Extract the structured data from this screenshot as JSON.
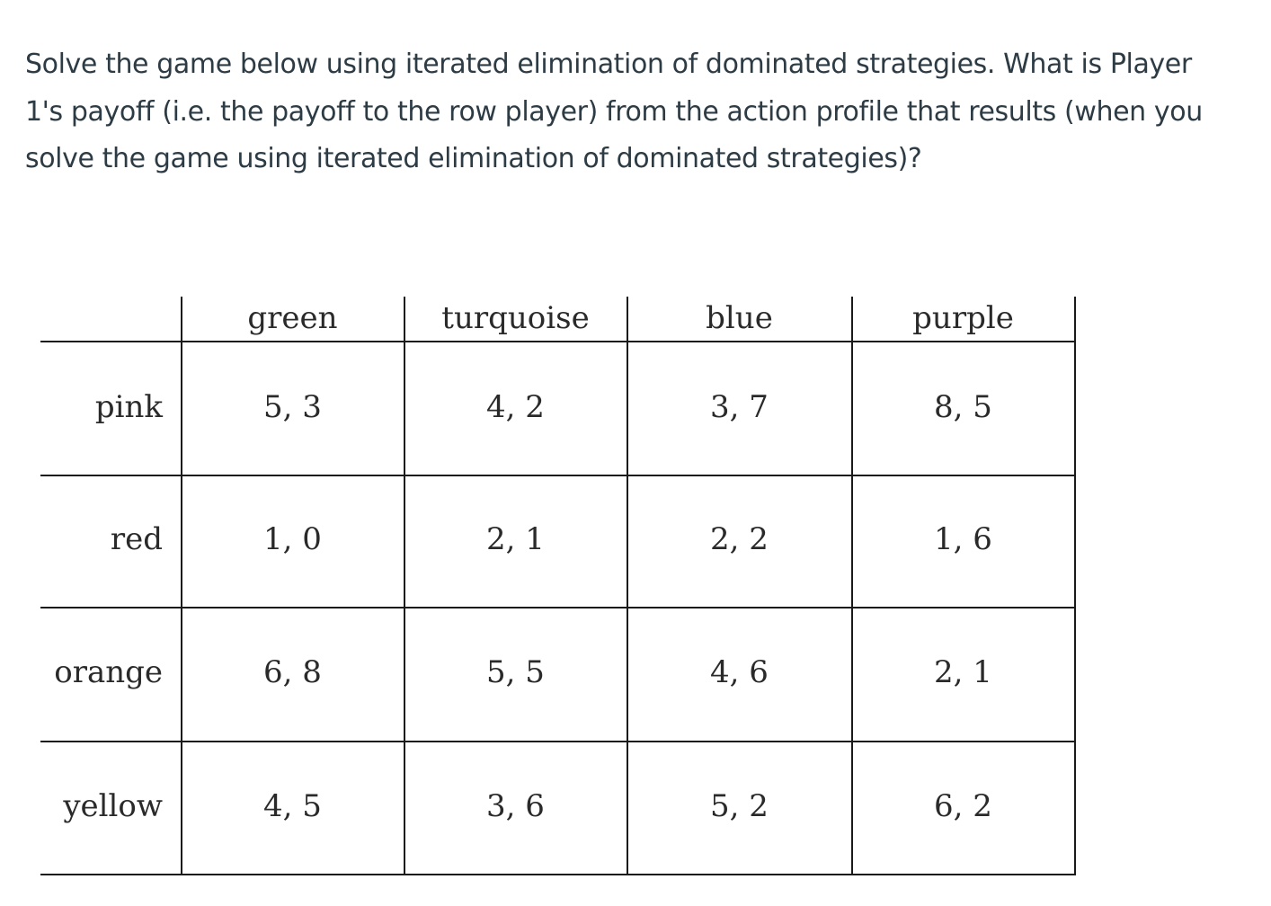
{
  "question": {
    "lines": [
      "Solve the game below using iterated elimination of dominated strategies.  What is Player",
      "1's payoff (i.e. the payoff to the row player) from the action profile that results (when you",
      "solve the game using iterated elimination of dominated strategies)?"
    ]
  },
  "table": {
    "columns": [
      "green",
      "turquoise",
      "blue",
      "purple"
    ],
    "rows": [
      {
        "label": "pink",
        "cells": [
          "5, 3",
          "4, 2",
          "3, 7",
          "8, 5"
        ]
      },
      {
        "label": "red",
        "cells": [
          "1, 0",
          "2, 1",
          "2, 2",
          "1, 6"
        ]
      },
      {
        "label": "orange",
        "cells": [
          "6, 8",
          "5, 5",
          "4, 6",
          "2, 1"
        ]
      },
      {
        "label": "yellow",
        "cells": [
          "4, 5",
          "3, 6",
          "5, 2",
          "6, 2"
        ]
      }
    ]
  }
}
